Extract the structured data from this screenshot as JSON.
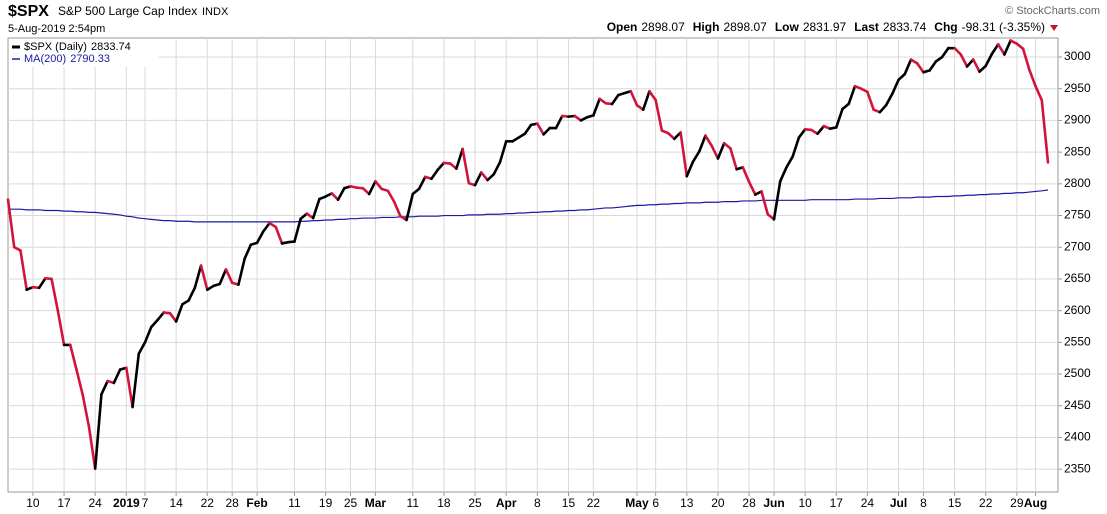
{
  "chart_data": {
    "type": "line",
    "title": "$SPX",
    "subtitle": "S&P 500 Large Cap Index",
    "exchange": "INDX",
    "date": "5-Aug-2019 2:54pm",
    "source": "© StockCharts.com",
    "quote": [
      {
        "label": "Open",
        "value": 2898.07
      },
      {
        "label": "High",
        "value": 2898.07
      },
      {
        "label": "Low",
        "value": 2831.97
      },
      {
        "label": "Last",
        "value": 2833.74
      }
    ],
    "change": {
      "label": "Chg",
      "text": "-98.31 (-3.35%)",
      "color": "#c8102e"
    },
    "categories": [
      null,
      null,
      null,
      null,
      "10",
      null,
      null,
      null,
      null,
      "17",
      null,
      null,
      null,
      null,
      "24",
      null,
      null,
      null,
      null,
      "2019",
      null,
      null,
      "7",
      null,
      null,
      null,
      null,
      "14",
      null,
      null,
      null,
      null,
      "22",
      null,
      null,
      null,
      "28",
      null,
      null,
      null,
      "Feb",
      null,
      null,
      null,
      null,
      null,
      "11",
      null,
      null,
      null,
      null,
      "19",
      null,
      null,
      null,
      "25",
      null,
      null,
      null,
      "Mar",
      null,
      null,
      null,
      null,
      null,
      "11",
      null,
      null,
      null,
      null,
      "18",
      null,
      null,
      null,
      null,
      "25",
      null,
      null,
      null,
      null,
      "Apr",
      null,
      null,
      null,
      null,
      "8",
      null,
      null,
      null,
      null,
      "15",
      null,
      null,
      null,
      "22",
      null,
      null,
      null,
      null,
      null,
      null,
      "May",
      null,
      null,
      "6",
      null,
      null,
      null,
      null,
      "13",
      null,
      null,
      null,
      null,
      "20",
      null,
      null,
      null,
      null,
      "28",
      null,
      null,
      null,
      "Jun",
      null,
      null,
      null,
      null,
      "10",
      null,
      null,
      null,
      null,
      "17",
      null,
      null,
      null,
      null,
      "24",
      null,
      null,
      null,
      null,
      "Jul",
      null,
      null,
      null,
      "8",
      null,
      null,
      null,
      null,
      "15",
      null,
      null,
      null,
      null,
      "22",
      null,
      null,
      null,
      null,
      "29",
      null,
      null,
      "Aug",
      null,
      null
    ],
    "series": [
      {
        "name": "$SPX (Daily)",
        "color": "#000000",
        "down_color": "#d2143a",
        "values": [
          2775,
          2700,
          2695,
          2633,
          2637,
          2636,
          2651,
          2650,
          2600,
          2546,
          2546,
          2507,
          2467,
          2417,
          2351,
          2468,
          2489,
          2486,
          2507,
          2510,
          2448,
          2532,
          2550,
          2574,
          2585,
          2597,
          2596,
          2583,
          2610,
          2616,
          2636,
          2671,
          2633,
          2639,
          2642,
          2665,
          2644,
          2641,
          2682,
          2704,
          2707,
          2725,
          2738,
          2732,
          2706,
          2708,
          2709,
          2745,
          2753,
          2746,
          2776,
          2780,
          2785,
          2775,
          2793,
          2796,
          2794,
          2793,
          2784,
          2804,
          2792,
          2789,
          2772,
          2749,
          2743,
          2784,
          2792,
          2811,
          2808,
          2822,
          2833,
          2832,
          2824,
          2855,
          2801,
          2798,
          2818,
          2806,
          2815,
          2834,
          2867,
          2867,
          2873,
          2879,
          2893,
          2895,
          2878,
          2888,
          2888,
          2907,
          2906,
          2907,
          2900,
          2905,
          2908,
          2934,
          2927,
          2926,
          2940,
          2943,
          2946,
          2924,
          2917,
          2946,
          2932,
          2884,
          2880,
          2871,
          2881,
          2812,
          2835,
          2851,
          2876,
          2860,
          2840,
          2864,
          2856,
          2823,
          2826,
          2803,
          2783,
          2788,
          2752,
          2744,
          2804,
          2826,
          2843,
          2873,
          2886,
          2885,
          2879,
          2891,
          2887,
          2889,
          2918,
          2926,
          2954,
          2950,
          2945,
          2917,
          2913,
          2924,
          2942,
          2964,
          2973,
          2996,
          2990,
          2976,
          2979,
          2993,
          3000,
          3014,
          3014,
          3004,
          2985,
          2996,
          2977,
          2986,
          3005,
          3020,
          3004,
          3026,
          3021,
          3013,
          2980,
          2954,
          2932,
          2833.74
        ]
      },
      {
        "name": "MA(200)",
        "color": "#1a1aa6",
        "values": [
          2760,
          2760,
          2760,
          2759,
          2759,
          2759,
          2758,
          2758,
          2758,
          2757,
          2757,
          2756,
          2756,
          2755,
          2755,
          2754,
          2753,
          2752,
          2751,
          2749,
          2748,
          2746,
          2745,
          2744,
          2743,
          2742,
          2742,
          2741,
          2741,
          2741,
          2740,
          2740,
          2740,
          2740,
          2740,
          2740,
          2740,
          2740,
          2740,
          2740,
          2740,
          2740,
          2740,
          2740,
          2740,
          2740,
          2740,
          2741,
          2741,
          2742,
          2742,
          2743,
          2743,
          2744,
          2744,
          2745,
          2745,
          2746,
          2746,
          2746,
          2747,
          2747,
          2747,
          2748,
          2748,
          2748,
          2749,
          2749,
          2749,
          2749,
          2750,
          2750,
          2750,
          2750,
          2751,
          2751,
          2751,
          2752,
          2752,
          2752,
          2753,
          2753,
          2754,
          2754,
          2755,
          2755,
          2756,
          2756,
          2757,
          2757,
          2758,
          2758,
          2759,
          2759,
          2760,
          2761,
          2762,
          2762,
          2763,
          2764,
          2765,
          2766,
          2766,
          2767,
          2767,
          2768,
          2768,
          2769,
          2769,
          2770,
          2770,
          2770,
          2771,
          2771,
          2771,
          2772,
          2772,
          2772,
          2773,
          2773,
          2773,
          2774,
          2774,
          2774,
          2774,
          2774,
          2774,
          2774,
          2774,
          2775,
          2775,
          2775,
          2775,
          2775,
          2775,
          2775,
          2776,
          2776,
          2776,
          2776,
          2777,
          2777,
          2777,
          2778,
          2778,
          2778,
          2779,
          2779,
          2779,
          2780,
          2780,
          2780,
          2781,
          2781,
          2782,
          2782,
          2783,
          2783,
          2784,
          2784,
          2785,
          2785,
          2786,
          2786,
          2787,
          2788,
          2789,
          2790.33
        ]
      }
    ],
    "ylim": [
      2314,
      3030
    ],
    "yticks": [
      2350,
      2400,
      2450,
      2500,
      2550,
      2600,
      2650,
      2700,
      2750,
      2800,
      2850,
      2900,
      2950,
      3000
    ],
    "grid": true
  }
}
